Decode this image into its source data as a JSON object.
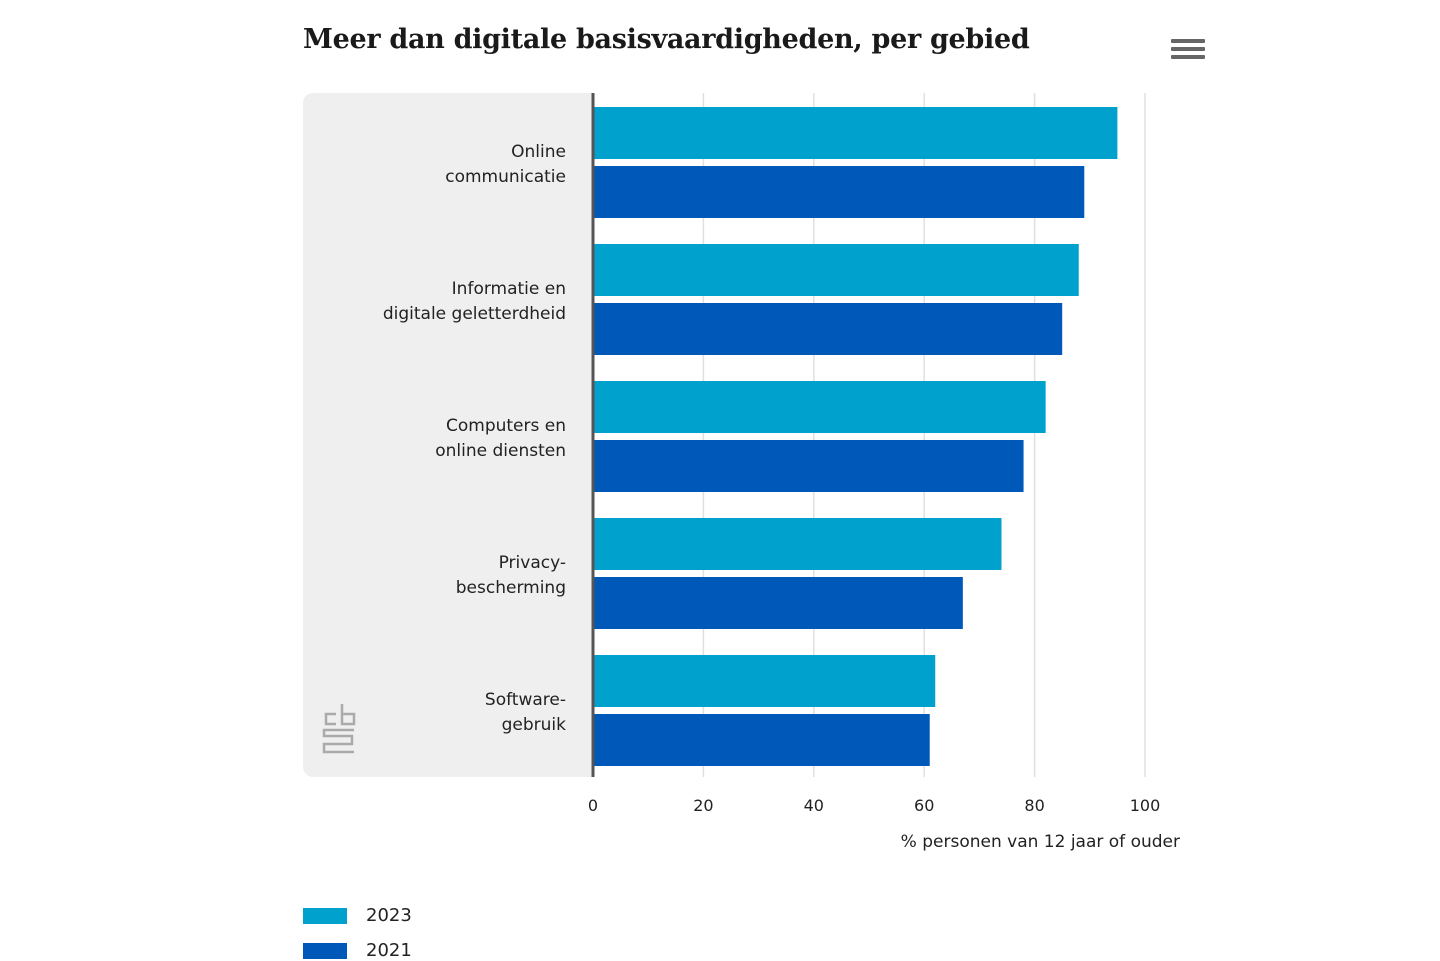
{
  "title": "Meer dan digitale basisvaardigheden, per gebied",
  "menu_icon": "hamburger-menu-icon",
  "logo": "cbs",
  "colors": {
    "s2023": "#00a1cd",
    "s2021": "#0058b8",
    "panel": "#efefef",
    "grid": "#e0e0e0",
    "axis": "#555555"
  },
  "chart_data": {
    "type": "bar",
    "orientation": "horizontal",
    "title": "Meer dan digitale basisvaardigheden, per gebied",
    "categories": [
      [
        "Online",
        "communicatie"
      ],
      [
        "Informatie en",
        "digitale geletterdheid"
      ],
      [
        "Computers en",
        "online diensten"
      ],
      [
        "Privacy-",
        "bescherming"
      ],
      [
        "Software-",
        "gebruik"
      ]
    ],
    "series": [
      {
        "name": "2023",
        "color": "#00a1cd",
        "values": [
          95,
          88,
          82,
          74,
          62
        ]
      },
      {
        "name": "2021",
        "color": "#0058b8",
        "values": [
          89,
          85,
          78,
          67,
          61
        ]
      }
    ],
    "xlabel": "% personen van 12 jaar of ouder",
    "xlim": [
      0,
      100
    ],
    "xticks": [
      "0",
      "20",
      "40",
      "60",
      "80",
      "100"
    ],
    "grid": true,
    "legend": "bottom-left"
  }
}
